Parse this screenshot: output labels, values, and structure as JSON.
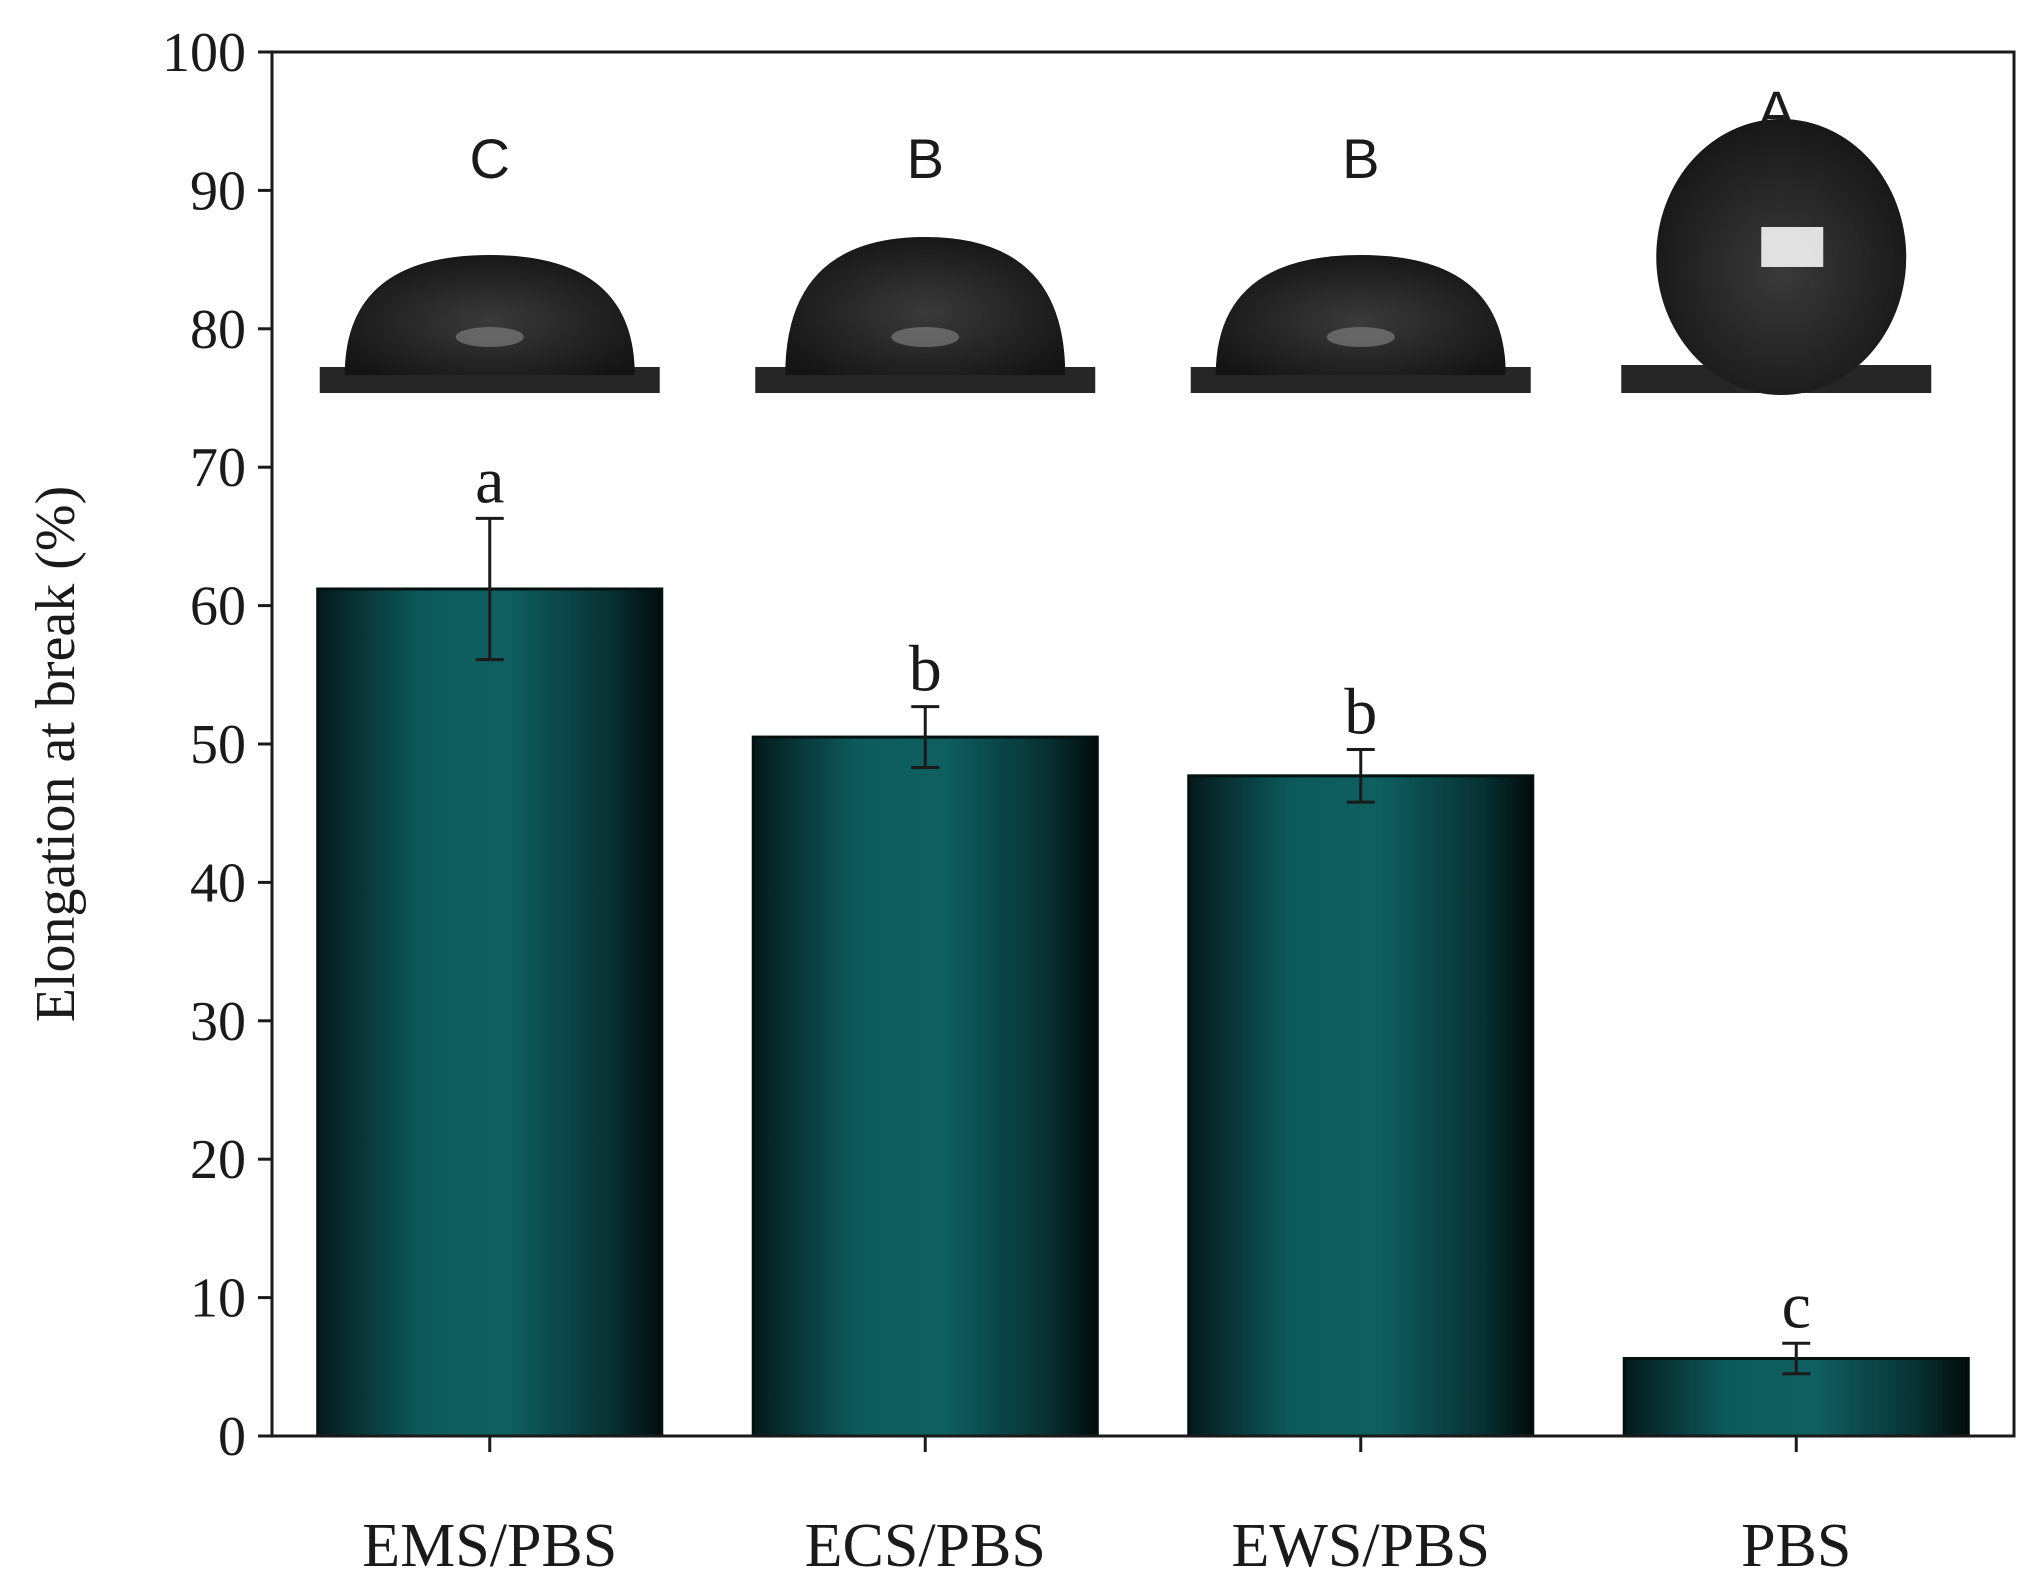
{
  "chart_data": {
    "type": "bar",
    "ylabel": "Elongation at break (%)",
    "xlabel": "",
    "ylim": [
      0,
      100
    ],
    "yticks": [
      0,
      10,
      20,
      30,
      40,
      50,
      60,
      70,
      80,
      90,
      100
    ],
    "categories": [
      "EMS/PBS",
      "ECS/PBS",
      "EWS/PBS",
      "PBS"
    ],
    "values": [
      61.2,
      50.5,
      47.7,
      5.6
    ],
    "errors": [
      5.1,
      2.2,
      1.9,
      1.1
    ],
    "significance_letters": [
      "a",
      "b",
      "b",
      "c"
    ],
    "contact_angle_images": [
      {
        "letter": "C",
        "shape": "flat-cap"
      },
      {
        "letter": "B",
        "shape": "cap"
      },
      {
        "letter": "B",
        "shape": "flat-cap"
      },
      {
        "letter": "A",
        "shape": "sphere"
      }
    ],
    "grid": false,
    "legend": "none",
    "colors": {
      "bar_center": "#0d5a5c",
      "bar_edge": "#031313",
      "droplet": "#1c1c1c"
    }
  }
}
